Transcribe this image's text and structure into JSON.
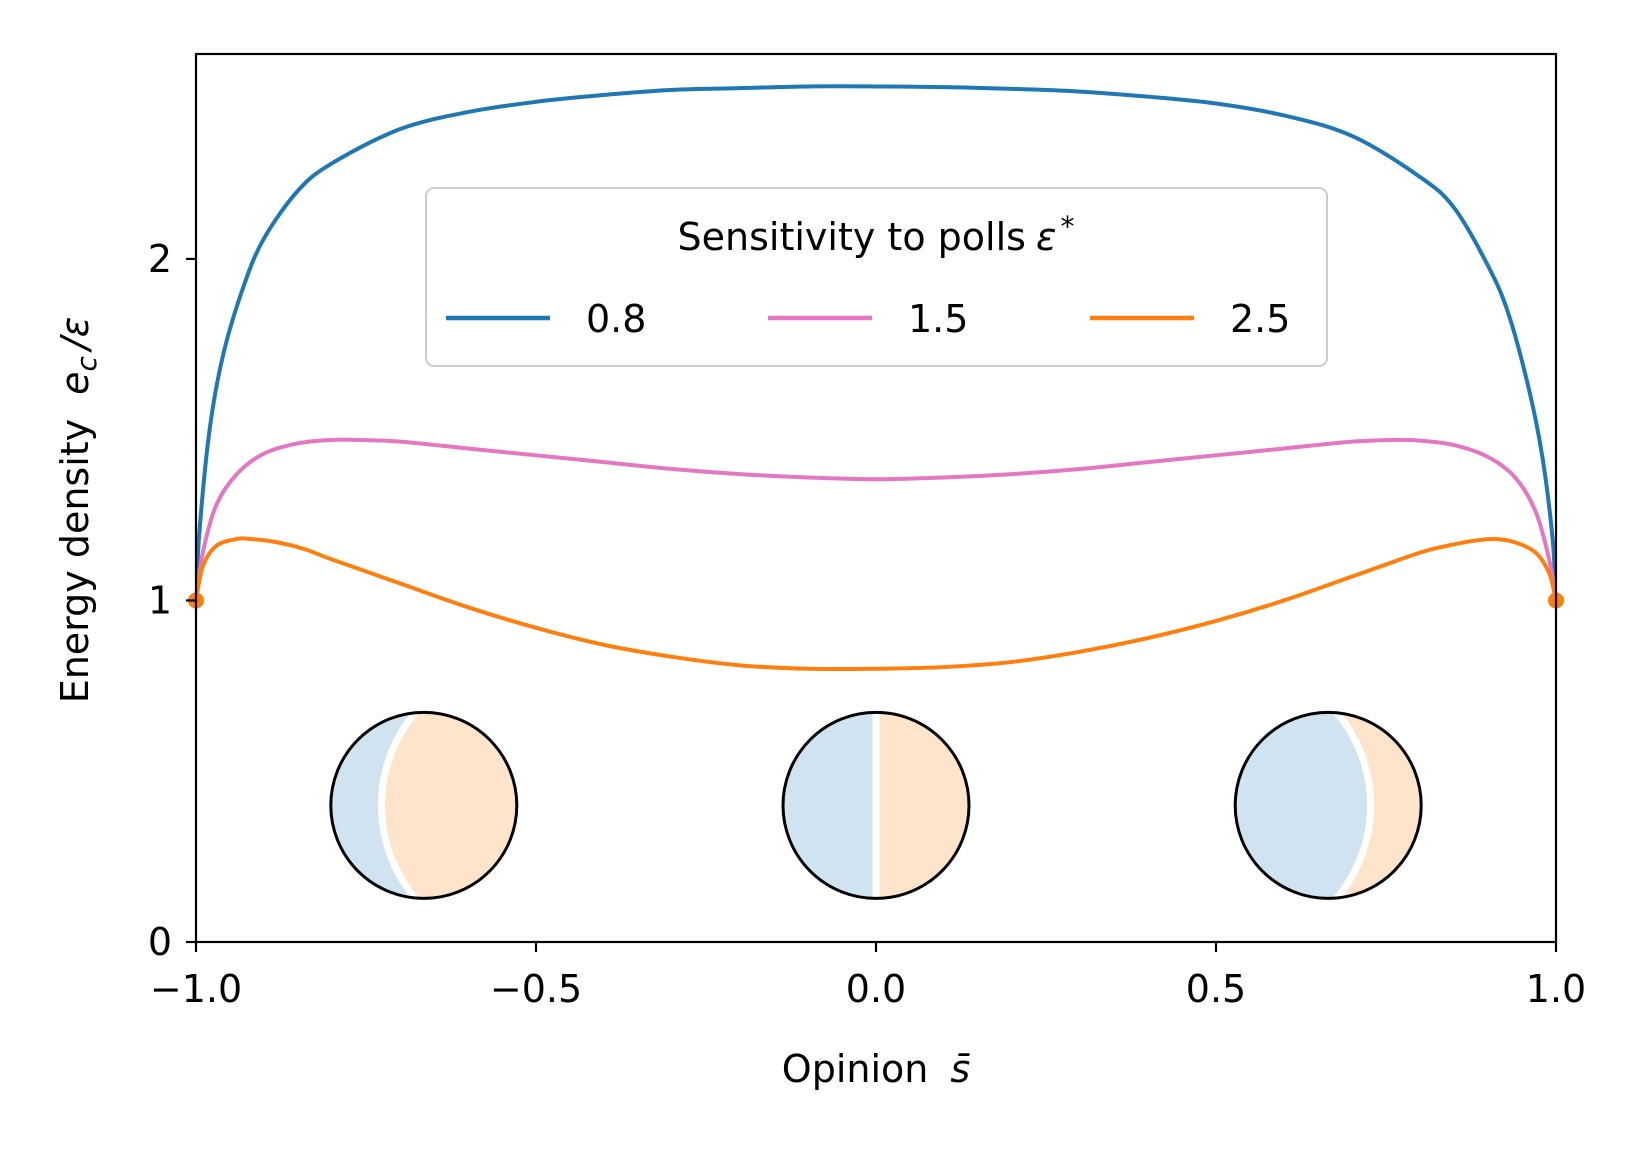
{
  "chart_data": {
    "type": "line",
    "title": "",
    "xlabel_text": "Opinion",
    "xlabel_symbol": "s̄",
    "ylabel_text": "Energy density",
    "ylabel_symbol_base": "e",
    "ylabel_symbol_sub": "c",
    "ylabel_symbol_tail": "/ε",
    "xlim": [
      -1.0,
      1.0
    ],
    "ylim": [
      0,
      2.6
    ],
    "x_ticks": [
      {
        "value": -1.0,
        "label": "−1.0"
      },
      {
        "value": -0.5,
        "label": "−0.5"
      },
      {
        "value": 0.0,
        "label": "0.0"
      },
      {
        "value": 0.5,
        "label": "0.5"
      },
      {
        "value": 1.0,
        "label": "1.0"
      }
    ],
    "y_ticks": [
      {
        "value": 0,
        "label": "0"
      },
      {
        "value": 1,
        "label": "1"
      },
      {
        "value": 2,
        "label": "2"
      }
    ],
    "grid": false,
    "legend": {
      "title_text": "Sensitivity to polls",
      "title_symbol": "ε",
      "title_sup": "*",
      "placement": "top-center",
      "columns": 3
    },
    "series": [
      {
        "name": "0.8",
        "color": "#1f77b4",
        "x": [
          -1.0,
          -0.995,
          -0.98,
          -0.96,
          -0.93,
          -0.9,
          -0.85,
          -0.8,
          -0.7,
          -0.6,
          -0.5,
          -0.4,
          -0.3,
          -0.2,
          -0.1,
          0.0,
          0.1,
          0.2,
          0.3,
          0.4,
          0.5,
          0.6,
          0.7,
          0.8,
          0.85,
          0.9,
          0.93,
          0.96,
          0.98,
          0.995,
          1.0
        ],
        "y": [
          1.0,
          1.2,
          1.5,
          1.72,
          1.92,
          2.06,
          2.2,
          2.28,
          2.38,
          2.43,
          2.46,
          2.48,
          2.495,
          2.5,
          2.505,
          2.505,
          2.503,
          2.498,
          2.49,
          2.475,
          2.455,
          2.42,
          2.36,
          2.24,
          2.15,
          1.98,
          1.84,
          1.62,
          1.42,
          1.18,
          1.0
        ]
      },
      {
        "name": "1.5",
        "color": "#e377c2",
        "x": [
          -1.0,
          -0.99,
          -0.97,
          -0.94,
          -0.9,
          -0.85,
          -0.8,
          -0.76,
          -0.7,
          -0.6,
          -0.5,
          -0.4,
          -0.3,
          -0.2,
          -0.1,
          0.0,
          0.1,
          0.2,
          0.3,
          0.4,
          0.5,
          0.6,
          0.7,
          0.76,
          0.8,
          0.85,
          0.9,
          0.94,
          0.97,
          0.99,
          1.0
        ],
        "y": [
          1.0,
          1.14,
          1.28,
          1.37,
          1.43,
          1.46,
          1.47,
          1.47,
          1.465,
          1.445,
          1.425,
          1.405,
          1.385,
          1.37,
          1.36,
          1.355,
          1.36,
          1.37,
          1.385,
          1.405,
          1.425,
          1.445,
          1.465,
          1.47,
          1.468,
          1.455,
          1.42,
          1.36,
          1.26,
          1.12,
          1.0
        ]
      },
      {
        "name": "2.5",
        "color": "#ff7f0e",
        "x": [
          -1.0,
          -0.99,
          -0.97,
          -0.94,
          -0.92,
          -0.88,
          -0.84,
          -0.8,
          -0.7,
          -0.6,
          -0.5,
          -0.4,
          -0.3,
          -0.2,
          -0.1,
          0.0,
          0.1,
          0.2,
          0.3,
          0.4,
          0.5,
          0.6,
          0.7,
          0.8,
          0.84,
          0.88,
          0.91,
          0.94,
          0.97,
          0.99,
          1.0
        ],
        "y": [
          1.0,
          1.1,
          1.16,
          1.18,
          1.18,
          1.17,
          1.15,
          1.12,
          1.05,
          0.98,
          0.92,
          0.87,
          0.835,
          0.81,
          0.8,
          0.8,
          0.805,
          0.82,
          0.85,
          0.89,
          0.94,
          1.0,
          1.07,
          1.14,
          1.16,
          1.175,
          1.18,
          1.17,
          1.14,
          1.08,
          1.0
        ]
      }
    ],
    "endpoints": {
      "color": "#ff7f0e",
      "points": [
        [
          -1.0,
          1.0
        ],
        [
          1.0,
          1.0
        ]
      ]
    },
    "insets": [
      {
        "name": "mostly-orange",
        "center_x": -0.665,
        "center_y": 0.4,
        "blue_fraction": 0.17
      },
      {
        "name": "half-half",
        "center_x": 0.0,
        "center_y": 0.4,
        "blue_fraction": 0.5
      },
      {
        "name": "mostly-blue",
        "center_x": 0.665,
        "center_y": 0.4,
        "blue_fraction": 0.83
      }
    ],
    "inset_colors": {
      "blue": "#d0e3f0",
      "orange": "#ffe4cc",
      "outline": "#000000"
    }
  }
}
